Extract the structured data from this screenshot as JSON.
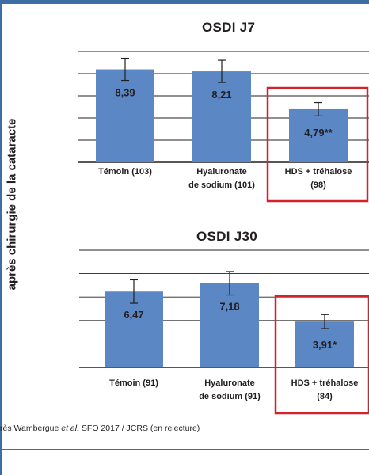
{
  "ylabel": "après chirurgie de la cataracte",
  "source": {
    "prefix": "rès Wambergue ",
    "italic": "et al.",
    "suffix": " SFO 2017 / JCRS (en relecture)"
  },
  "colors": {
    "bar": "#5b87c5",
    "highlight": "#d2232a",
    "grid": "#231f20",
    "frame": "#3d6ea5"
  },
  "chart_data": [
    {
      "type": "bar",
      "title": "OSDI J7",
      "categories": [
        [
          "Témoin (103)"
        ],
        [
          "Hyaluronate",
          "de sodium (101)"
        ],
        [
          "HDS + tréhalose",
          "(98)"
        ]
      ],
      "values": [
        8.39,
        8.21,
        4.79
      ],
      "value_labels": [
        "8,39",
        "8,21",
        "4,79**"
      ],
      "error": [
        1.0,
        1.0,
        0.6
      ],
      "highlight_index": 2,
      "ylim": [
        0,
        10
      ],
      "grid": true
    },
    {
      "type": "bar",
      "title": "OSDI J30",
      "categories": [
        [
          "Témoin (91)"
        ],
        [
          "Hyaluronate",
          "de sodium (91)"
        ],
        [
          "HDS + tréhalose",
          "(84)"
        ]
      ],
      "values": [
        6.47,
        7.18,
        3.91
      ],
      "value_labels": [
        "6,47",
        "7,18",
        "3,91*"
      ],
      "error": [
        1.0,
        1.0,
        0.6
      ],
      "highlight_index": 2,
      "ylim": [
        0,
        10
      ],
      "grid": true
    }
  ]
}
